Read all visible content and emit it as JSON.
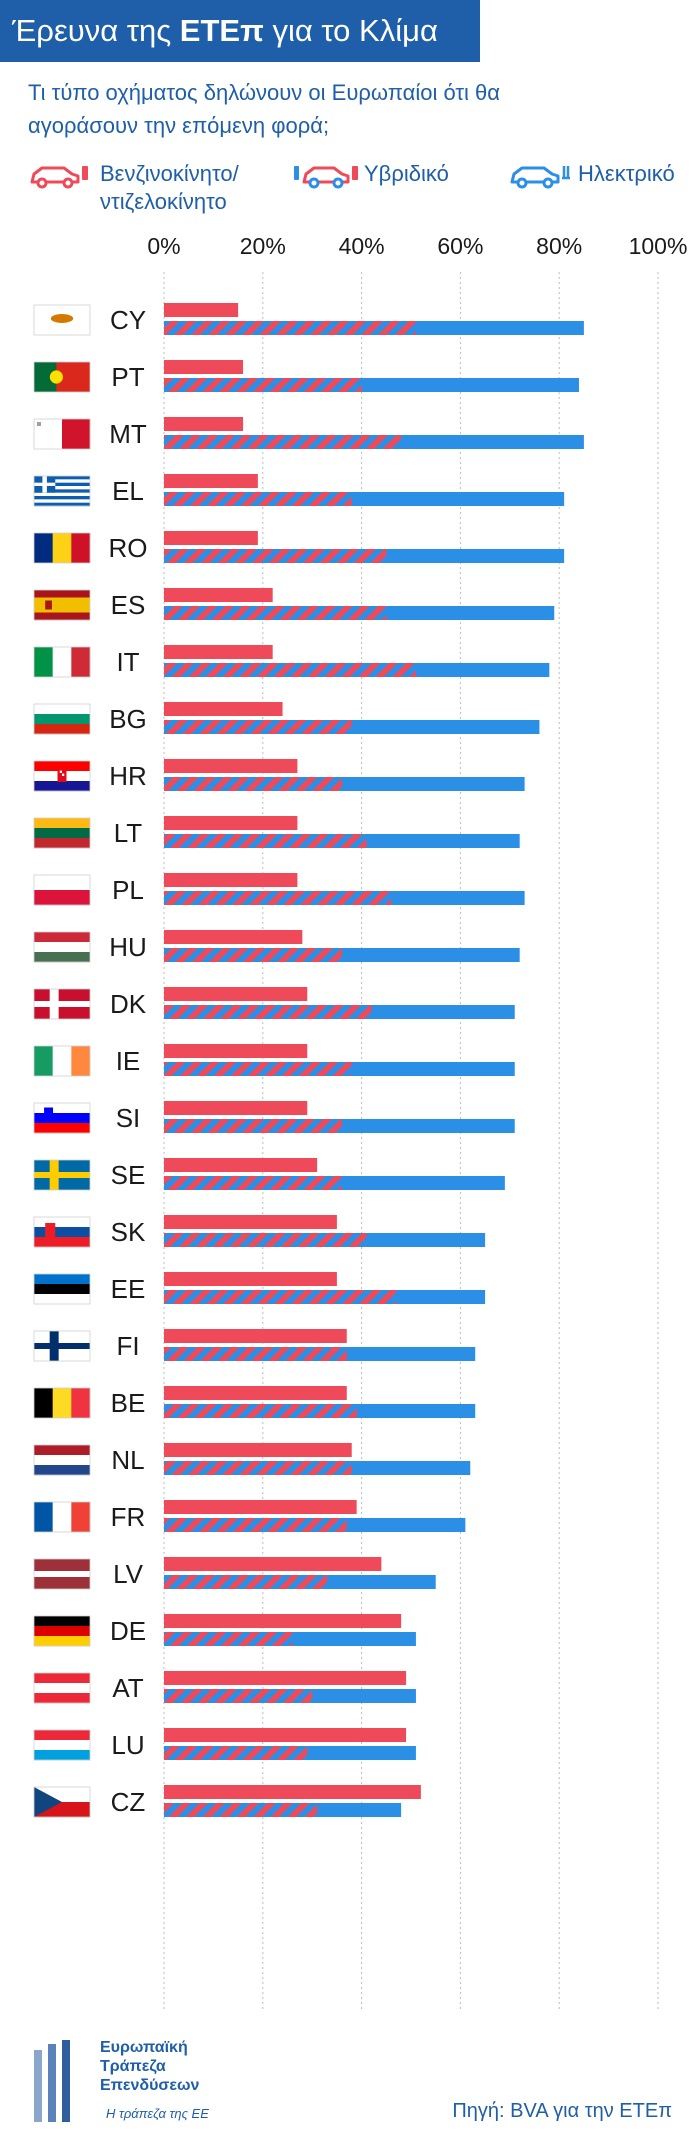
{
  "header": {
    "title_pre": "Έρευνα της ",
    "title_bold": "ΕΤΕπ",
    "title_post": " για το Κλίμα",
    "question": "Τι τύπο οχήματος δηλώνουν οι Ευρωπαίοι ότι θα αγοράσουν την επόμενη φορά;"
  },
  "legend": {
    "petrol_line1": "Βενζινοκίνητο/",
    "petrol_line2": "ντιζελοκίνητο",
    "hybrid": "Υβριδικό",
    "electric": "Ηλεκτρικό"
  },
  "colors": {
    "petrol": "#ef4a5a",
    "electric": "#2b8fe6",
    "brand_blue": "#1f5ea8",
    "grid": "#b9bcc2"
  },
  "chart_data": {
    "type": "bar",
    "xlim": [
      0,
      100
    ],
    "x_ticks": [
      "0%",
      "20%",
      "40%",
      "60%",
      "80%",
      "100%"
    ],
    "categories": [
      "CY",
      "PT",
      "MT",
      "EL",
      "RO",
      "ES",
      "IT",
      "BG",
      "HR",
      "LT",
      "PL",
      "HU",
      "DK",
      "IE",
      "SI",
      "SE",
      "SK",
      "EE",
      "FI",
      "BE",
      "NL",
      "FR",
      "LV",
      "DE",
      "AT",
      "LU",
      "CZ"
    ],
    "flags": [
      "cyprus-flag-icon",
      "portugal-flag-icon",
      "malta-flag-icon",
      "greece-flag-icon",
      "romania-flag-icon",
      "spain-flag-icon",
      "italy-flag-icon",
      "bulgaria-flag-icon",
      "croatia-flag-icon",
      "lithuania-flag-icon",
      "poland-flag-icon",
      "hungary-flag-icon",
      "denmark-flag-icon",
      "ireland-flag-icon",
      "slovenia-flag-icon",
      "sweden-flag-icon",
      "slovakia-flag-icon",
      "estonia-flag-icon",
      "finland-flag-icon",
      "belgium-flag-icon",
      "netherlands-flag-icon",
      "france-flag-icon",
      "latvia-flag-icon",
      "germany-flag-icon",
      "austria-flag-icon",
      "luxembourg-flag-icon",
      "czechia-flag-icon"
    ],
    "series": [
      {
        "name": "Βενζινοκίνητο/ντιζελοκίνητο",
        "values": [
          15,
          16,
          16,
          19,
          19,
          22,
          22,
          24,
          27,
          27,
          27,
          28,
          29,
          29,
          29,
          31,
          35,
          35,
          37,
          37,
          38,
          39,
          44,
          48,
          49,
          49,
          52
        ]
      },
      {
        "name": "Υβριδικό",
        "values": [
          51,
          40,
          48,
          38,
          45,
          45,
          51,
          38,
          36,
          41,
          46,
          36,
          42,
          38,
          36,
          36,
          41,
          47,
          37,
          39,
          38,
          37,
          33,
          26,
          30,
          29,
          31
        ]
      },
      {
        "name": "Ηλεκτρικό",
        "values": [
          85,
          84,
          85,
          81,
          81,
          79,
          78,
          76,
          73,
          72,
          73,
          72,
          71,
          71,
          71,
          69,
          65,
          65,
          63,
          63,
          62,
          61,
          55,
          51,
          51,
          51,
          48
        ]
      }
    ]
  },
  "footer": {
    "logo_line1": "Ευρωπαϊκή",
    "logo_line2": "Τράπεζα",
    "logo_line3": "Επενδύσεων",
    "logo_tagline": "Η τράπεζα της ΕΕ",
    "source": "Πηγή: BVA για την ΕΤΕπ"
  }
}
